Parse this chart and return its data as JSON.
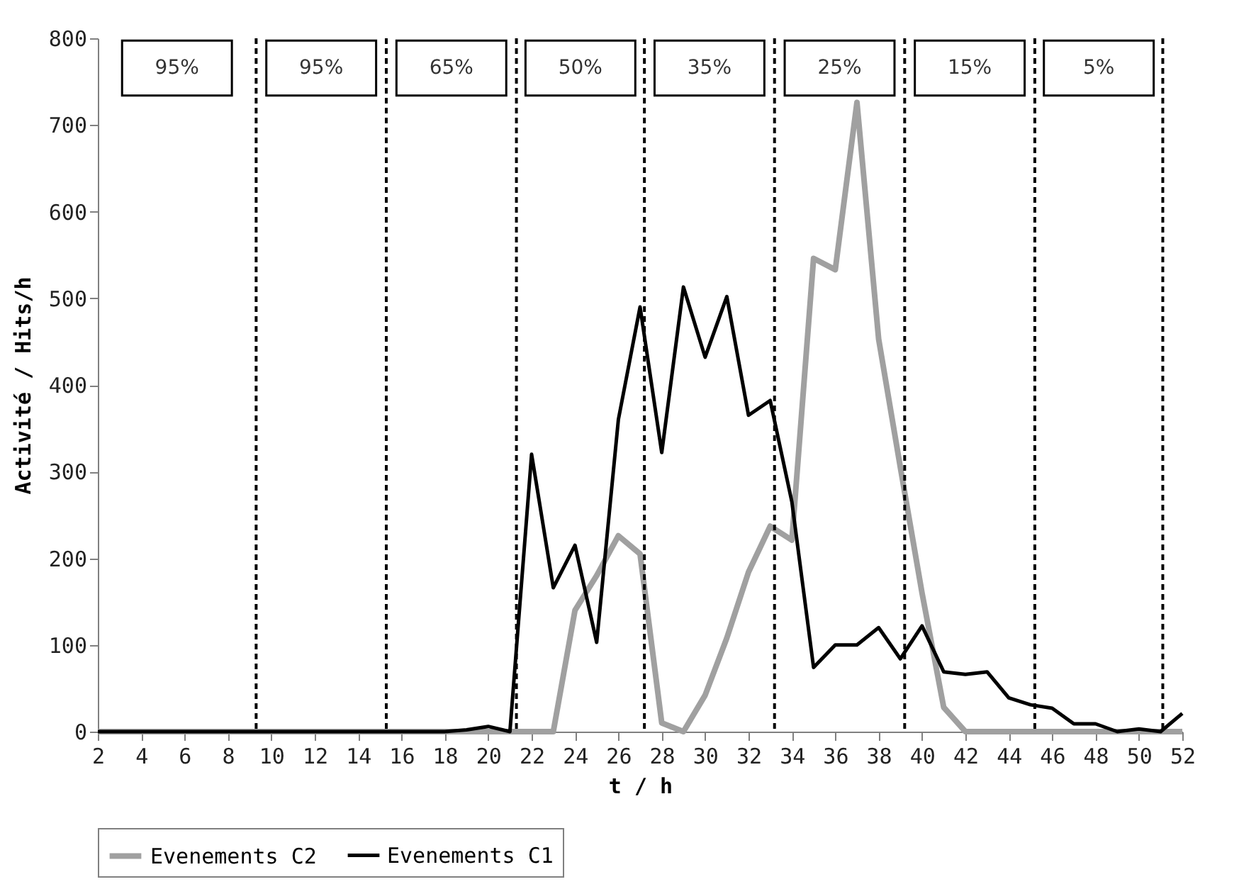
{
  "chart_data": {
    "type": "line",
    "xlabel": "t / h",
    "ylabel": "Activité / Hits/h",
    "x": [
      2,
      3,
      4,
      5,
      6,
      7,
      8,
      9,
      10,
      11,
      12,
      13,
      14,
      15,
      16,
      17,
      18,
      19,
      20,
      21,
      22,
      23,
      24,
      25,
      26,
      27,
      28,
      29,
      30,
      31,
      32,
      33,
      34,
      35,
      36,
      37,
      38,
      39,
      40,
      41,
      42,
      43,
      44,
      45,
      46,
      47,
      48,
      49,
      50,
      51,
      52
    ],
    "series": [
      {
        "name": "Evenements C2",
        "color": "#a0a0a0",
        "values": [
          0,
          0,
          0,
          0,
          0,
          0,
          0,
          0,
          0,
          0,
          0,
          0,
          0,
          0,
          0,
          0,
          0,
          0,
          0,
          0,
          0,
          0,
          140,
          180,
          226,
          205,
          10,
          0,
          42,
          108,
          184,
          237,
          221,
          546,
          533,
          726,
          453,
          305,
          160,
          28,
          0,
          0,
          0,
          0,
          0,
          0,
          0,
          0,
          0,
          0,
          0
        ]
      },
      {
        "name": "Evenements C1",
        "color": "#000000",
        "values": [
          0,
          0,
          0,
          0,
          0,
          0,
          0,
          0,
          0,
          0,
          0,
          0,
          0,
          0,
          0,
          0,
          0,
          2,
          6,
          0,
          320,
          166,
          215,
          103,
          360,
          490,
          322,
          513,
          432,
          502,
          365,
          382,
          265,
          74,
          100,
          100,
          120,
          84,
          122,
          69,
          66,
          69,
          39,
          31,
          27,
          9,
          9,
          0,
          3,
          0,
          21
        ]
      }
    ],
    "xlim": [
      2,
      52
    ],
    "xticks": [
      2,
      4,
      6,
      8,
      10,
      12,
      14,
      16,
      18,
      20,
      22,
      24,
      26,
      28,
      30,
      32,
      34,
      36,
      38,
      40,
      42,
      44,
      46,
      48,
      50,
      52
    ],
    "ylim": [
      0,
      800
    ],
    "yticks": [
      0,
      100,
      200,
      300,
      400,
      500,
      600,
      700,
      800
    ],
    "ref_lines": [
      {
        "axis": "x",
        "value": 9.3,
        "line_style": "dashed",
        "color": "#000000"
      },
      {
        "axis": "x",
        "value": 15.3,
        "line_style": "dashed",
        "color": "#000000"
      },
      {
        "axis": "x",
        "value": 21.3,
        "line_style": "dashed",
        "color": "#000000"
      },
      {
        "axis": "x",
        "value": 27.2,
        "line_style": "dashed",
        "color": "#000000"
      },
      {
        "axis": "x",
        "value": 33.2,
        "line_style": "dashed",
        "color": "#000000"
      },
      {
        "axis": "x",
        "value": 39.2,
        "line_style": "dashed",
        "color": "#000000"
      },
      {
        "axis": "x",
        "value": 45.2,
        "line_style": "dashed",
        "color": "#000000"
      },
      {
        "axis": "x",
        "value": 51.1,
        "line_style": "dashed",
        "color": "#000000"
      }
    ],
    "annotations": [
      "95%",
      "95%",
      "65%",
      "50%",
      "35%",
      "25%",
      "15%",
      "5%"
    ],
    "grid": false,
    "legend": "bottom",
    "marker": "none",
    "line_style": "solid"
  }
}
